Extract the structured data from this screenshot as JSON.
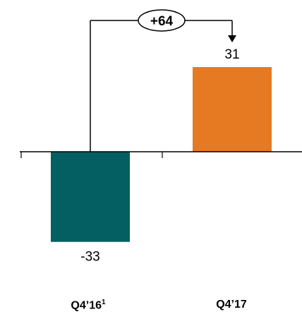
{
  "chart_data": {
    "type": "bar",
    "categories": [
      "Q4’16",
      "Q4’17"
    ],
    "category_footnotes": [
      "1",
      ""
    ],
    "values": [
      -33,
      31
    ],
    "value_labels": [
      "-33",
      "31"
    ],
    "colors": [
      "#035F62",
      "#E67A22"
    ],
    "ylim": [
      -45,
      60
    ],
    "annotation": {
      "text": "+64",
      "from_category": 0,
      "to_category": 1,
      "arrow": "down"
    },
    "title": "",
    "xlabel": "",
    "ylabel": ""
  }
}
